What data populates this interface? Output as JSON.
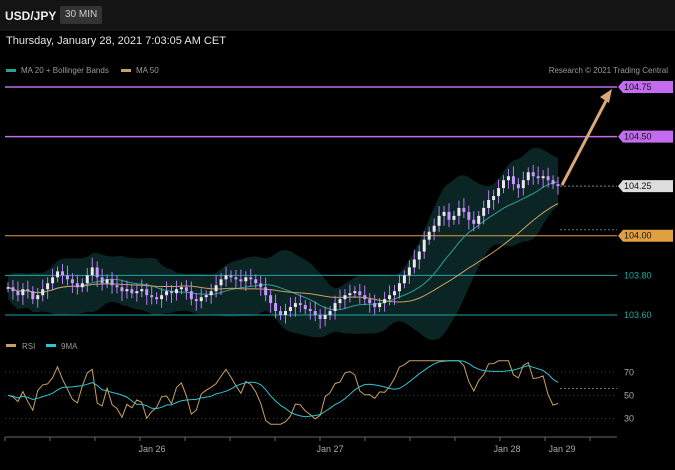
{
  "header": {
    "symbol": "USD/JPY",
    "interval": "30 MIN",
    "datetime": "Thursday, January 28, 2021 7:03:05 AM CET"
  },
  "colors": {
    "background": "#000000",
    "candle_up": "#e9e9e9",
    "candle_wick_hi": "#c79bff",
    "purple_level": "#c46cf0",
    "orange_level": "#e0a040",
    "teal_level": "#1aa8a8",
    "ma20": "#2aa198",
    "ma50": "#c8a060",
    "band_fill": "#0d2a2a",
    "arrow": "#d8a878",
    "rsi": "#c8a060",
    "rsi_ma": "#2ec4d0"
  },
  "chart_data": [
    {
      "type": "candlestick",
      "symbol": "USD/JPY",
      "legend": [
        "MA 20 + Bollinger Bands",
        "MA 50"
      ],
      "credit": "Research © 2021 Trading Central",
      "x_ticks": [
        "Jan 26",
        "Jan 27",
        "Jan 28",
        "Jan 29"
      ],
      "ylim": [
        103.5,
        104.8
      ],
      "level_labels": [
        "104.75",
        "104.50",
        "104.25",
        "104.00",
        "103.80",
        "103.60"
      ],
      "levels": [
        {
          "value": 104.75,
          "kind": "resistance",
          "color": "#c46cf0",
          "tagged": true
        },
        {
          "value": 104.5,
          "kind": "resistance",
          "color": "#c46cf0",
          "tagged": true
        },
        {
          "value": 104.25,
          "kind": "current",
          "color": "#bbbbbb",
          "tagged": true
        },
        {
          "value": 104.0,
          "kind": "support",
          "color": "#e0a040",
          "tagged": true
        },
        {
          "value": 103.8,
          "kind": "support",
          "color": "#1aa8a8",
          "tagged": false
        },
        {
          "value": 103.6,
          "kind": "support",
          "color": "#1aa8a8",
          "tagged": false
        }
      ],
      "forecast_arrow": {
        "from": 104.25,
        "to": 104.75
      },
      "close_path": [
        103.74,
        103.72,
        103.7,
        103.73,
        103.72,
        103.68,
        103.7,
        103.73,
        103.76,
        103.79,
        103.82,
        103.8,
        103.78,
        103.76,
        103.74,
        103.76,
        103.8,
        103.84,
        103.79,
        103.76,
        103.78,
        103.75,
        103.74,
        103.72,
        103.73,
        103.71,
        103.72,
        103.73,
        103.7,
        103.69,
        103.68,
        103.7,
        103.72,
        103.71,
        103.73,
        103.74,
        103.72,
        103.68,
        103.67,
        103.69,
        103.7,
        103.72,
        103.75,
        103.78,
        103.8,
        103.79,
        103.78,
        103.77,
        103.79,
        103.78,
        103.76,
        103.74,
        103.7,
        103.66,
        103.62,
        103.6,
        103.62,
        103.64,
        103.66,
        103.65,
        103.63,
        103.62,
        103.6,
        103.58,
        103.6,
        103.62,
        103.66,
        103.68,
        103.7,
        103.71,
        103.72,
        103.7,
        103.68,
        103.66,
        103.64,
        103.66,
        103.68,
        103.7,
        103.72,
        103.76,
        103.8,
        103.84,
        103.88,
        103.92,
        103.98,
        104.02,
        104.05,
        104.1,
        104.12,
        104.08,
        104.1,
        104.14,
        104.12,
        104.08,
        104.06,
        104.1,
        104.14,
        104.18,
        104.2,
        104.24,
        104.28,
        104.3,
        104.26,
        104.24,
        104.28,
        104.32,
        104.3,
        104.29,
        104.3,
        104.28,
        104.26,
        104.25
      ],
      "rsi": {
        "labels": [
          "RSI",
          "9MA"
        ],
        "y_ticks": [
          "70",
          "50",
          "30"
        ],
        "ylim": [
          20,
          85
        ],
        "current": 56
      }
    }
  ]
}
